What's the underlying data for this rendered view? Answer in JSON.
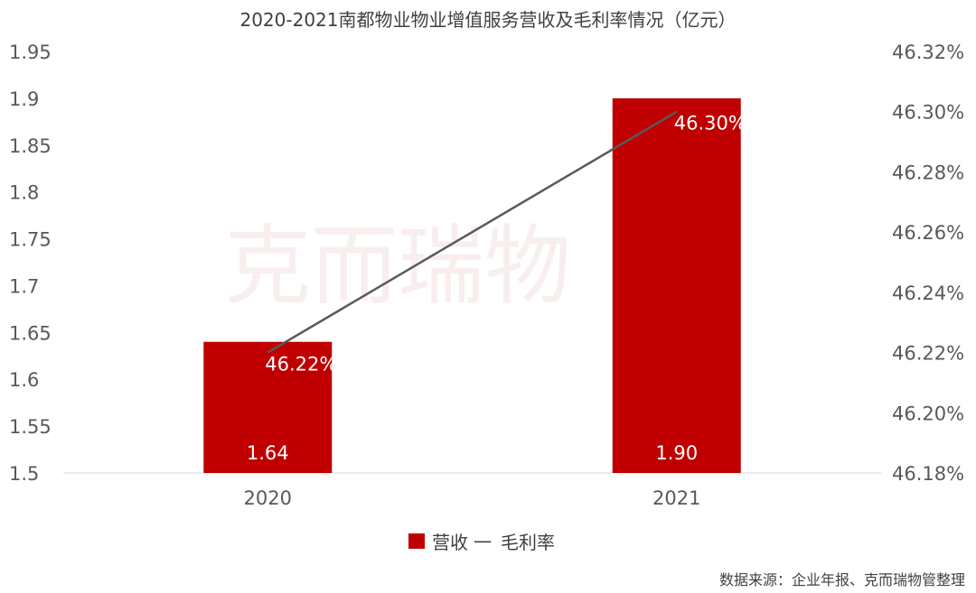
{
  "colors": {
    "bar": "#c00000",
    "line": "#595959",
    "axis_text": "#595959",
    "gridline": "#d9d9d9"
  },
  "watermark": "克而瑞物",
  "source": "数据来源：企业年报、克而瑞物管整理",
  "chart_data": {
    "type": "bar",
    "title": "2020-2021南都物业物业增值服务营收及毛利率情况（亿元）",
    "categories": [
      "2020",
      "2021"
    ],
    "series": [
      {
        "name": "营收",
        "type": "bar",
        "axis": "left",
        "values": [
          1.64,
          1.9
        ],
        "labels": [
          "1.64",
          "1.90"
        ]
      },
      {
        "name": "毛利率",
        "type": "line",
        "axis": "right",
        "values": [
          46.22,
          46.3
        ],
        "labels": [
          "46.22%",
          "46.30%"
        ]
      }
    ],
    "y_left": {
      "ylim": [
        1.5,
        1.95
      ],
      "ticks": [
        "1.95",
        "1.9",
        "1.85",
        "1.8",
        "1.75",
        "1.7",
        "1.65",
        "1.6",
        "1.55",
        "1.5"
      ],
      "tick_values": [
        1.95,
        1.9,
        1.85,
        1.8,
        1.75,
        1.7,
        1.65,
        1.6,
        1.55,
        1.5
      ]
    },
    "y_right": {
      "ylim": [
        46.18,
        46.32
      ],
      "ticks": [
        "46.32%",
        "46.30%",
        "46.28%",
        "46.26%",
        "46.24%",
        "46.22%",
        "46.20%",
        "46.18%"
      ],
      "tick_values": [
        46.32,
        46.3,
        46.28,
        46.26,
        46.24,
        46.22,
        46.2,
        46.18
      ]
    },
    "legend": {
      "position": "bottom",
      "dash_glyph": "一"
    },
    "grid": false
  }
}
